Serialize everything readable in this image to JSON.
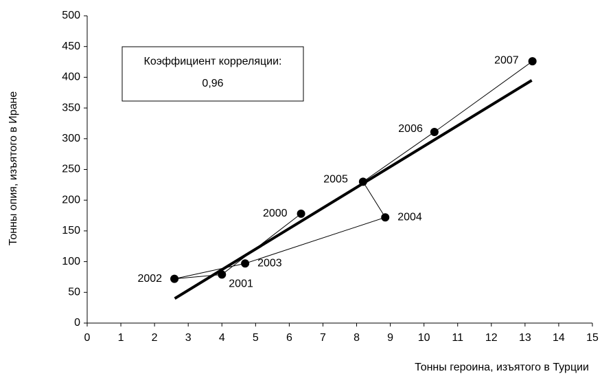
{
  "chart_data": {
    "type": "scatter",
    "x_label": "Тонны героина, изъятого в Турции",
    "y_label": "Тонны опия, изъятого в Иране",
    "annotation": {
      "title": "Коэффициент корреляции:",
      "value": "0,96"
    },
    "point_labels": [
      "2000",
      "2001",
      "2002",
      "2003",
      "2004",
      "2005",
      "2006",
      "2007"
    ],
    "x": [
      6.35,
      4.0,
      2.59,
      4.69,
      8.85,
      8.19,
      10.31,
      13.22
    ],
    "values": [
      178,
      79,
      72,
      97,
      172,
      230,
      311,
      426
    ],
    "color": "#000000",
    "connected": true,
    "trend": {
      "x": [
        2.6,
        13.2
      ],
      "values": [
        40,
        395
      ]
    },
    "xlim": [
      0,
      15
    ],
    "xticks": [
      0,
      1,
      2,
      3,
      4,
      5,
      6,
      7,
      8,
      9,
      10,
      11,
      12,
      13,
      14,
      15
    ],
    "ylim": [
      0,
      500
    ],
    "yticks": [
      0,
      50,
      100,
      150,
      200,
      250,
      300,
      350,
      400,
      450,
      500
    ],
    "grid": false
  }
}
